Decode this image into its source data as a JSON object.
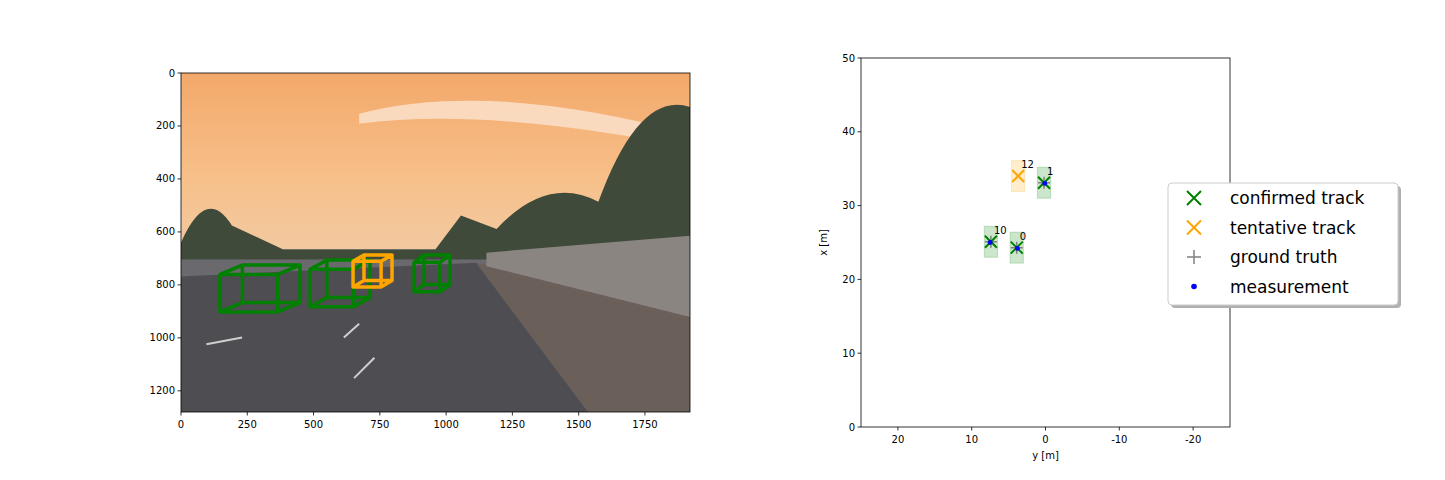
{
  "chart_data": [
    {
      "type": "image",
      "xlim": [
        0,
        1920
      ],
      "ylim": [
        1280,
        0
      ],
      "xticks": [
        0,
        250,
        500,
        750,
        1000,
        1250,
        1500,
        1750
      ],
      "yticks": [
        0,
        200,
        400,
        600,
        800,
        1000,
        1200
      ],
      "boxes": [
        {
          "x": [
            147,
            449
          ],
          "y": [
            725,
            902
          ],
          "color": "#008000"
        },
        {
          "x": [
            487,
            713
          ],
          "y": [
            706,
            883
          ],
          "color": "#008000"
        },
        {
          "x": [
            649,
            796
          ],
          "y": [
            687,
            808
          ],
          "color": "#ffa500"
        },
        {
          "x": [
            879,
            1015
          ],
          "y": [
            687,
            826
          ],
          "color": "#008000"
        }
      ]
    },
    {
      "type": "scatter",
      "xlabel": "y [m]",
      "ylabel": "x [m]",
      "xlim": [
        25,
        -25
      ],
      "ylim": [
        0,
        50
      ],
      "xticks": [
        20,
        10,
        0,
        -10,
        -20
      ],
      "yticks": [
        0,
        10,
        20,
        30,
        40,
        50
      ],
      "legend": "right",
      "series": [
        {
          "name": "confirmed track",
          "color": "#008000",
          "marker": "x",
          "x": [
            3.9,
            0.2,
            7.4
          ],
          "values": [
            24.3,
            33.1,
            25.1
          ],
          "labels": [
            "0",
            "1",
            "10"
          ],
          "width": [
            1.8,
            1.8,
            1.8
          ],
          "length": [
            4.2,
            4.2,
            4.2
          ]
        },
        {
          "name": "tentative track",
          "color": "#ffa500",
          "marker": "x",
          "x": [
            3.7
          ],
          "values": [
            34.0
          ],
          "labels": [
            "12"
          ],
          "width": [
            1.8
          ],
          "length": [
            4.2
          ]
        },
        {
          "name": "ground truth",
          "color": "#808080",
          "marker": "plus",
          "x": [
            3.9,
            0.2,
            7.4
          ],
          "values": [
            24.3,
            33.1,
            25.1
          ]
        },
        {
          "name": "measurement",
          "color": "#0000ff",
          "marker": "dot",
          "x": [
            3.8,
            0.1,
            7.5
          ],
          "values": [
            24.2,
            33.0,
            25.0
          ]
        }
      ]
    }
  ]
}
